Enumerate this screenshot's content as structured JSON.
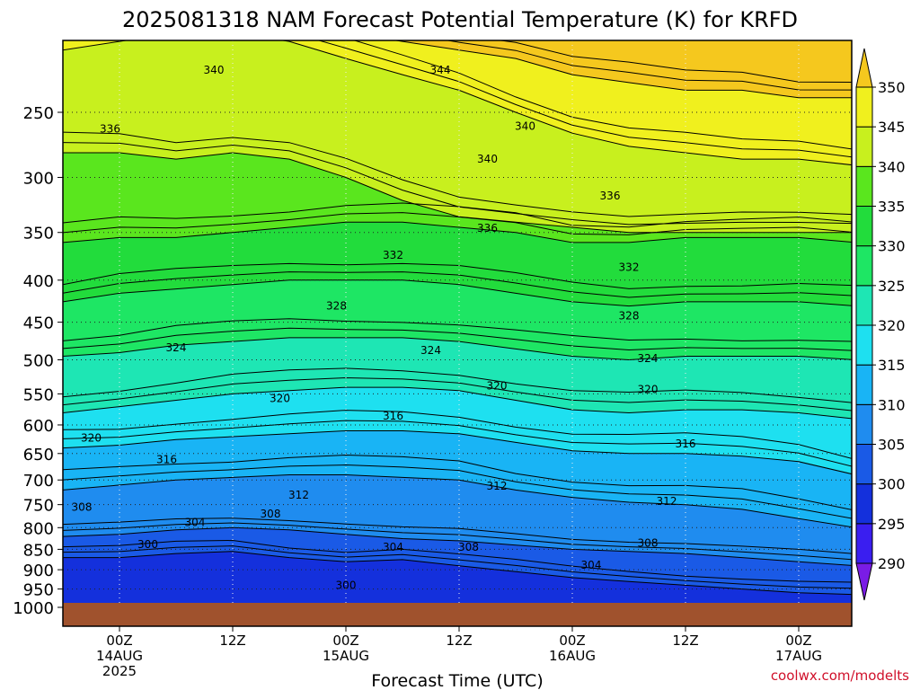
{
  "chart_data": {
    "type": "heatmap",
    "title": "2025081318 NAM Forecast Potential Temperature (K) for KRFD",
    "xlabel": "Forecast Time (UTC)",
    "ylabel": "",
    "credit": "coolwx.com/modelts",
    "y_scale": "log-pressure",
    "y_ticks": [
      250,
      300,
      350,
      400,
      450,
      500,
      550,
      600,
      650,
      700,
      750,
      800,
      850,
      900,
      950,
      1000
    ],
    "ylim_hpa": [
      1000,
      200
    ],
    "x_ticks": [
      {
        "hour": 6,
        "lines": [
          "00Z",
          "14AUG",
          "2025"
        ]
      },
      {
        "hour": 18,
        "lines": [
          "12Z"
        ]
      },
      {
        "hour": 30,
        "lines": [
          "00Z",
          "15AUG"
        ]
      },
      {
        "hour": 42,
        "lines": [
          "12Z"
        ]
      },
      {
        "hour": 54,
        "lines": [
          "00Z",
          "16AUG"
        ]
      },
      {
        "hour": 66,
        "lines": [
          "12Z"
        ]
      },
      {
        "hour": 78,
        "lines": [
          "00Z",
          "17AUG"
        ]
      }
    ],
    "xlim_hours": [
      0,
      84
    ],
    "colorbar": {
      "levels": [
        290,
        295,
        300,
        305,
        310,
        315,
        320,
        325,
        330,
        335,
        340,
        345,
        350
      ],
      "labels": [
        "290",
        "295",
        "300",
        "305",
        "310",
        "315",
        "320",
        "325",
        "330",
        "335",
        "340",
        "345",
        "350"
      ],
      "colors": [
        "#7a1ce6",
        "#3a1ef0",
        "#1430dc",
        "#1a5ae6",
        "#1f8cef",
        "#19b4f5",
        "#1ee0f0",
        "#1ee6b4",
        "#1ee664",
        "#22dc3c",
        "#5ae61e",
        "#c8f01e",
        "#f0f01e",
        "#f5c81e"
      ]
    },
    "ground_color": "#a0522d",
    "contour_labels": [
      {
        "text": "340",
        "hour": 16,
        "hpa": 222
      },
      {
        "text": "344",
        "hour": 40,
        "hpa": 222
      },
      {
        "text": "336",
        "hour": 5,
        "hpa": 262
      },
      {
        "text": "340",
        "hour": 49,
        "hpa": 260
      },
      {
        "text": "340",
        "hour": 45,
        "hpa": 285
      },
      {
        "text": "336",
        "hour": 58,
        "hpa": 316
      },
      {
        "text": "336",
        "hour": 45,
        "hpa": 346
      },
      {
        "text": "332",
        "hour": 35,
        "hpa": 373
      },
      {
        "text": "332",
        "hour": 60,
        "hpa": 386
      },
      {
        "text": "328",
        "hour": 29,
        "hpa": 430
      },
      {
        "text": "328",
        "hour": 60,
        "hpa": 442
      },
      {
        "text": "324",
        "hour": 12,
        "hpa": 483
      },
      {
        "text": "324",
        "hour": 39,
        "hpa": 487
      },
      {
        "text": "324",
        "hour": 62,
        "hpa": 498
      },
      {
        "text": "320",
        "hour": 23,
        "hpa": 557
      },
      {
        "text": "320",
        "hour": 46,
        "hpa": 538
      },
      {
        "text": "320",
        "hour": 62,
        "hpa": 543
      },
      {
        "text": "316",
        "hour": 35,
        "hpa": 585
      },
      {
        "text": "316",
        "hour": 66,
        "hpa": 633
      },
      {
        "text": "320",
        "hour": 3,
        "hpa": 622
      },
      {
        "text": "316",
        "hour": 11,
        "hpa": 661
      },
      {
        "text": "312",
        "hour": 25,
        "hpa": 730
      },
      {
        "text": "312",
        "hour": 46,
        "hpa": 712
      },
      {
        "text": "312",
        "hour": 64,
        "hpa": 743
      },
      {
        "text": "308",
        "hour": 2,
        "hpa": 755
      },
      {
        "text": "308",
        "hour": 22,
        "hpa": 770
      },
      {
        "text": "304",
        "hour": 14,
        "hpa": 788
      },
      {
        "text": "304",
        "hour": 35,
        "hpa": 845
      },
      {
        "text": "308",
        "hour": 43,
        "hpa": 845
      },
      {
        "text": "308",
        "hour": 62,
        "hpa": 835
      },
      {
        "text": "304",
        "hour": 56,
        "hpa": 888
      },
      {
        "text": "300",
        "hour": 9,
        "hpa": 838
      },
      {
        "text": "300",
        "hour": 30,
        "hpa": 940
      }
    ],
    "layer_boundaries": [
      {
        "value": 300,
        "hpa": [
          870,
          870,
          860,
          855,
          870,
          880,
          875,
          890,
          905,
          920,
          930,
          940,
          950,
          960,
          965
        ]
      },
      {
        "value": 305,
        "hpa": [
          820,
          815,
          805,
          800,
          805,
          815,
          825,
          830,
          840,
          850,
          855,
          860,
          870,
          880,
          890
        ]
      },
      {
        "value": 310,
        "hpa": [
          720,
          710,
          700,
          695,
          690,
          690,
          695,
          700,
          720,
          735,
          745,
          750,
          760,
          780,
          800
        ]
      },
      {
        "value": 315,
        "hpa": [
          640,
          635,
          625,
          620,
          615,
          610,
          610,
          615,
          630,
          645,
          650,
          650,
          655,
          665,
          690
        ]
      },
      {
        "value": 320,
        "hpa": [
          580,
          570,
          560,
          550,
          545,
          540,
          540,
          545,
          560,
          575,
          580,
          575,
          575,
          580,
          590
        ]
      },
      {
        "value": 325,
        "hpa": [
          495,
          490,
          480,
          475,
          470,
          470,
          470,
          475,
          485,
          495,
          500,
          495,
          495,
          495,
          500
        ]
      },
      {
        "value": 330,
        "hpa": [
          425,
          415,
          410,
          405,
          400,
          400,
          400,
          405,
          415,
          425,
          430,
          425,
          425,
          425,
          430
        ]
      },
      {
        "value": 335,
        "hpa": [
          360,
          355,
          355,
          350,
          345,
          340,
          340,
          345,
          350,
          360,
          360,
          355,
          355,
          355,
          360
        ]
      },
      {
        "value": 340,
        "hpa": [
          280,
          280,
          285,
          280,
          285,
          300,
          320,
          335,
          340,
          345,
          350,
          350,
          350,
          350,
          350
        ]
      },
      {
        "value": 345,
        "hpa": [
          210,
          205,
          200,
          200,
          205,
          215,
          225,
          235,
          250,
          265,
          275,
          280,
          285,
          285,
          290
        ]
      },
      {
        "value": 350,
        "hpa": [
          200,
          200,
          195,
          195,
          200,
          200,
          205,
          210,
          215,
          225,
          230,
          235,
          235,
          240,
          240
        ]
      }
    ],
    "contour_hours": [
      0,
      6,
      12,
      18,
      24,
      30,
      36,
      42,
      48,
      54,
      60,
      66,
      72,
      78,
      84
    ]
  }
}
